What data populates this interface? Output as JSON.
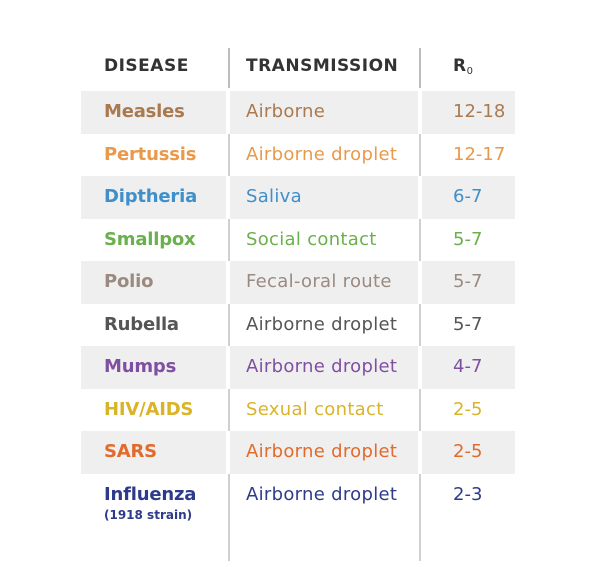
{
  "headers": {
    "disease": "DISEASE",
    "transmission": "TRANSMISSION",
    "r0_main": "R",
    "r0_sub": "0"
  },
  "rows": [
    {
      "disease": "Measles",
      "transmission": "Airborne",
      "r0": "12-18",
      "color": "#a97a4f",
      "shaded": true
    },
    {
      "disease": "Pertussis",
      "transmission": "Airborne droplet",
      "r0": "12-17",
      "color": "#e9994a",
      "shaded": false
    },
    {
      "disease": "Diptheria",
      "transmission": "Saliva",
      "r0": "6-7",
      "color": "#3f8fca",
      "shaded": true
    },
    {
      "disease": "Smallpox",
      "transmission": "Social contact",
      "r0": "5-7",
      "color": "#6ab04c",
      "shaded": false
    },
    {
      "disease": "Polio",
      "transmission": "Fecal-oral route",
      "r0": "5-7",
      "color": "#9a8a80",
      "shaded": true
    },
    {
      "disease": "Rubella",
      "transmission": "Airborne droplet",
      "r0": "5-7",
      "color": "#555555",
      "shaded": false
    },
    {
      "disease": "Mumps",
      "transmission": "Airborne droplet",
      "r0": "4-7",
      "color": "#7f4fa2",
      "shaded": true
    },
    {
      "disease": "HIV/AIDS",
      "transmission": "Sexual contact",
      "r0": "2-5",
      "color": "#d9b428",
      "shaded": false
    },
    {
      "disease": "SARS",
      "transmission": "Airborne droplet",
      "r0": "2-5",
      "color": "#e06b2c",
      "shaded": true
    },
    {
      "disease": "Influenza",
      "note": "(1918 strain)",
      "transmission": "Airborne droplet",
      "r0": "2-3",
      "color": "#2e3b8a",
      "shaded": false
    }
  ]
}
